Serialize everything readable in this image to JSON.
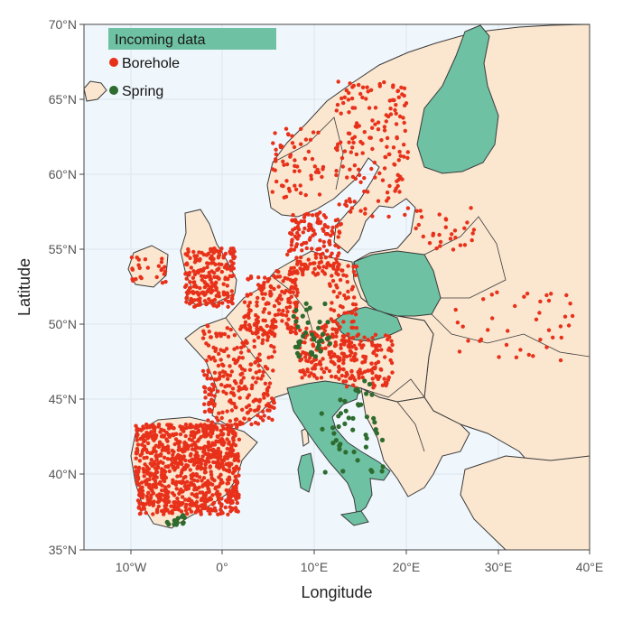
{
  "map": {
    "xlabel": "Longitude",
    "ylabel": "Latitude",
    "x_ticks": [
      "10°W",
      "0°",
      "10°E",
      "20°E",
      "30°E",
      "40°E"
    ],
    "y_ticks": [
      "35°N",
      "40°N",
      "45°N",
      "50°N",
      "55°N",
      "60°N",
      "65°N",
      "70°N"
    ],
    "xlim": [
      -15,
      40
    ],
    "ylim": [
      35,
      70
    ]
  },
  "legend": {
    "title": "Incoming data",
    "items": [
      {
        "label": "Borehole",
        "color": "#e8311a"
      },
      {
        "label": "Spring",
        "color": "#2e6b2e"
      }
    ]
  },
  "colors": {
    "sea": "#f0f7fc",
    "land": "#fbe6cf",
    "incoming": "#6ec1a3",
    "border": "#3a3a3a",
    "borehole": "#e8311a",
    "spring": "#2e6b2e"
  }
}
